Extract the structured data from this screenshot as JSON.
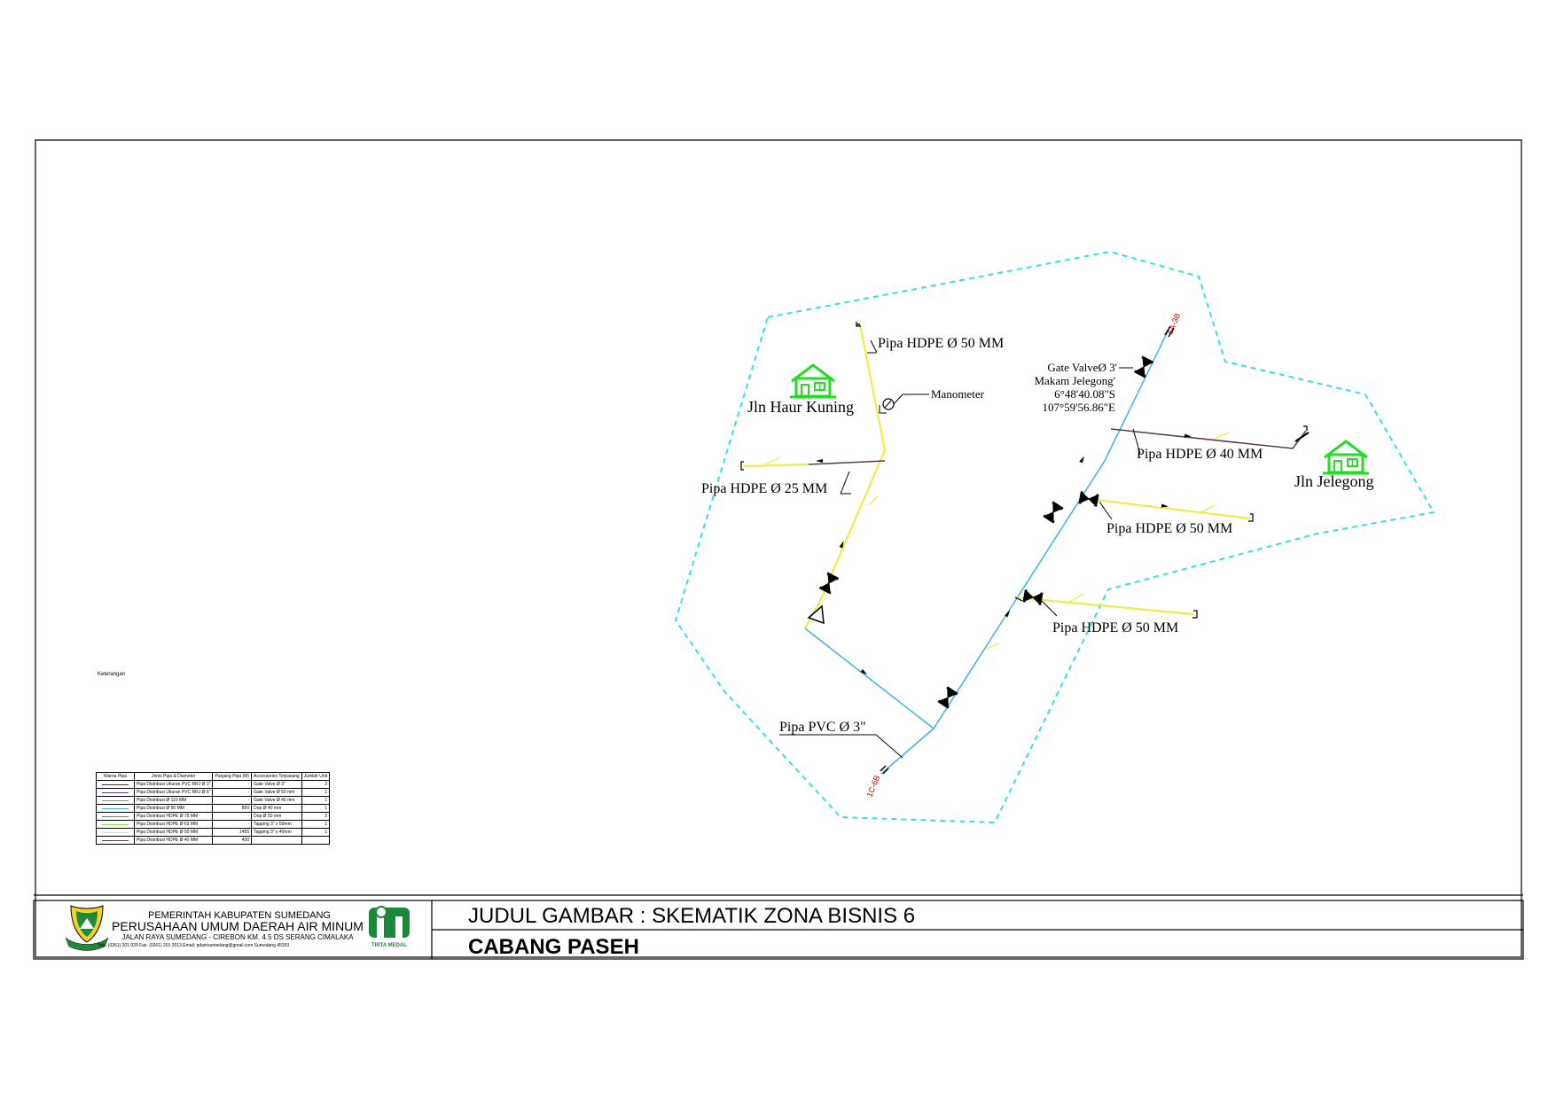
{
  "title_block": {
    "gov_name": "PEMERINTAH KABUPATEN SUMEDANG",
    "company_name": "PERUSAHAAN UMUM DAERAH AIR MINUM",
    "address": "JALAN RAYA SUMEDANG - CIREBON KM. 4.5 DS SERANG CIMALAKA",
    "contact": "Telp. (0261) 201 029 Fax. (0261) 201 2013 Email: pdamsumedang@gmail.com Sumedang 45353",
    "brand": "TIRTA MEDAL",
    "drawing_title": "JUDUL GAMBAR : SKEMATIK ZONA BISNIS 6",
    "branch": "CABANG PASEH"
  },
  "diagram": {
    "labels": {
      "pipe_hdpe50_top": "Pipa HDPE Ø 50 MM",
      "manometer": "Manometer",
      "jln_haur_kuning": "Jln Haur Kuning",
      "pipe_hdpe25": "Pipa HDPE Ø 25 MM",
      "pipe_pvc3": "Pipa PVC Ø 3\"",
      "gate_valve_line1": "Gate ValveØ 3'",
      "gate_valve_line2": "Makam Jelegong'",
      "gate_valve_line3": "6°48'40.08\"S",
      "gate_valve_line4": "107°59'56.86\"E",
      "pipe_hdpe40": "Pipa HDPE Ø 40 MM",
      "jln_jelegong": "Jln Jelegong",
      "pipe_hdpe50_mid": "Pipa HDPE Ø 50 MM",
      "pipe_hdpe50_low": "Pipa HDPE Ø 50 MM",
      "node_top": "6A-3B",
      "node_bottom": "1C-6B"
    },
    "colors": {
      "zone_boundary": "#33e0e6",
      "pvc_line": "#3bb5e0",
      "hdpe_line": "#ecec3a",
      "hdpe40_line": "#5a3a4a",
      "house_icon": "#22dd22",
      "node_label": "#cc0000"
    }
  },
  "legend": {
    "caption": "Keterangan",
    "headers": [
      "Warna Pipa",
      "Jenis Pipa & Diameter",
      "Panjang Pipa (M)",
      "Accessories Terpasang",
      "Jumlah Unit"
    ],
    "rows": [
      {
        "color": "#4a2a3a",
        "type": "Pipa Distribusi Ukuran PVC RRJ Ø 3\"",
        "length": "-",
        "accessory": "Gate Valve Ø 3\"",
        "qty": "2"
      },
      {
        "color": "#6a3a7a",
        "type": "Pipa Distribusi Ukuran PVC RRJ Ø 6\"",
        "length": "-",
        "accessory": "Gate Valve Ø 50 mm",
        "qty": "1"
      },
      {
        "color": "#c8782a",
        "type": "Pipa Distribusi Ø 110 MM",
        "length": "-",
        "accessory": "Gate Valve Ø 40 mm",
        "qty": "1"
      },
      {
        "color": "#3bb5e0",
        "type": "Pipa Distribusi Ø 90 MM",
        "length": "850",
        "accessory": "Dop Ø 40 mm",
        "qty": "1"
      },
      {
        "color": "#b06a2a",
        "type": "Pipa Distribusi HDPE Ø 75 MM",
        "length": "-",
        "accessory": "Dop Ø 50 mm",
        "qty": "2"
      },
      {
        "color": "#8ee05a",
        "type": "Pipa Distribusi HDPE Ø 63 MM",
        "length": "-",
        "accessory": "Tapping 3\" x 50mm",
        "qty": "1"
      },
      {
        "color": "#ecec3a",
        "type": "Pipa Distribusi HDPE Ø 50 MM",
        "length": "1455",
        "accessory": "Tapping 3\" x 40mm",
        "qty": "1"
      },
      {
        "color": "#5a3a4a",
        "type": "Pipa Distribusi HDPE Ø 40 MM",
        "length": "430",
        "accessory": "",
        "qty": ""
      }
    ]
  }
}
